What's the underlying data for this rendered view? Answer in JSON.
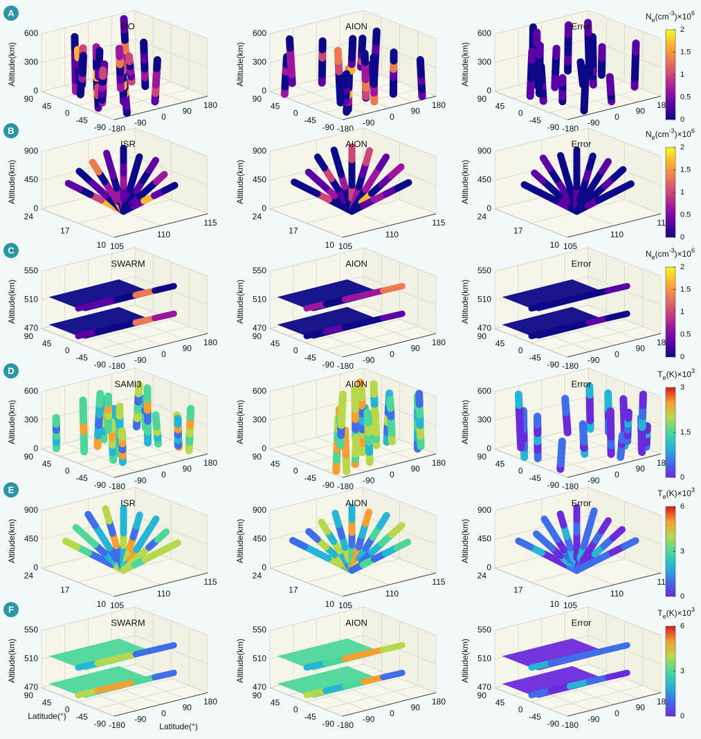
{
  "y_label": "Altitude(km)",
  "panels": [
    {
      "label": "A",
      "titles": [
        "RO",
        "AION",
        "Error"
      ],
      "alt_ticks": [
        0,
        300,
        600
      ],
      "lat_ticks": [
        90,
        45,
        0,
        -45,
        -90
      ],
      "lon_ticks": [
        -180,
        -90,
        0,
        90,
        180
      ],
      "colorbar": {
        "title": [
          "N",
          "e",
          "(cm",
          "-3",
          ")×10",
          "6"
        ],
        "ticks": [
          0,
          0.5,
          1,
          1.5,
          2
        ],
        "colors": [
          "#0d0887",
          "#5c01a6",
          "#9c179e",
          "#cc4778",
          "#ed7953",
          "#fdb42f",
          "#f0f921"
        ]
      }
    },
    {
      "label": "B",
      "titles": [
        "ISR",
        "AION",
        "Error"
      ],
      "alt_ticks": [
        0,
        450,
        900
      ],
      "lat_ticks": [
        24,
        17,
        10
      ],
      "lon_ticks": [
        105,
        110,
        115
      ],
      "colorbar": {
        "title": [
          "N",
          "e",
          "(cm",
          "-3",
          ")×10",
          "6"
        ],
        "ticks": [
          0,
          0.5,
          1,
          1.5,
          2
        ],
        "colors": [
          "#0d0887",
          "#5c01a6",
          "#9c179e",
          "#cc4778",
          "#ed7953",
          "#fdb42f",
          "#f0f921"
        ]
      }
    },
    {
      "label": "C",
      "titles": [
        "SWARM",
        "AION",
        "Error"
      ],
      "alt_ticks": [
        470,
        510,
        550
      ],
      "lat_ticks": [
        90,
        45,
        0,
        -45,
        -90
      ],
      "lon_ticks": [
        -180,
        -90,
        0,
        90,
        180
      ],
      "colorbar": {
        "title": [
          "N",
          "e",
          "(cm",
          "-3",
          ")×10",
          "6"
        ],
        "ticks": [
          0,
          0.5,
          1,
          1.5,
          2
        ],
        "colors": [
          "#0d0887",
          "#5c01a6",
          "#9c179e",
          "#cc4778",
          "#ed7953",
          "#fdb42f",
          "#f0f921"
        ]
      }
    },
    {
      "label": "D",
      "titles": [
        "SAMI3",
        "AION",
        "Error"
      ],
      "alt_ticks": [
        0,
        300,
        600
      ],
      "lat_ticks": [
        90,
        45,
        0,
        -45,
        -90
      ],
      "lon_ticks": [
        -180,
        -90,
        0,
        90,
        180
      ],
      "colorbar": {
        "title": [
          "T",
          "e",
          "(K)×10",
          "3"
        ],
        "ticks": [
          0,
          1.5,
          3
        ],
        "colors": [
          "#6a2bdb",
          "#3f6fe8",
          "#25b6d6",
          "#4dd69a",
          "#b8d84b",
          "#f5a030",
          "#d7191c"
        ]
      }
    },
    {
      "label": "E",
      "titles": [
        "ISR",
        "AION",
        "Error"
      ],
      "alt_ticks": [
        0,
        450,
        900
      ],
      "lat_ticks": [
        24,
        17,
        10
      ],
      "lon_ticks": [
        105,
        110,
        115
      ],
      "colorbar": {
        "title": [
          "T",
          "e",
          "(K)×10",
          "3"
        ],
        "ticks": [
          0,
          3,
          6
        ],
        "colors": [
          "#6a2bdb",
          "#3f6fe8",
          "#25b6d6",
          "#4dd69a",
          "#b8d84b",
          "#f5a030",
          "#d7191c"
        ]
      }
    },
    {
      "label": "F",
      "titles": [
        "SWARM",
        "AION",
        "Error"
      ],
      "alt_ticks": [
        470,
        510,
        550
      ],
      "lat_ticks": [
        90,
        45,
        0,
        -45,
        -90
      ],
      "lon_ticks": [
        -180,
        -90,
        0,
        90,
        180
      ],
      "x_labels": [
        "Latitude(°)",
        "Latitude(°)"
      ],
      "colorbar": {
        "title": [
          "T",
          "e",
          "(K)×10",
          "3"
        ],
        "ticks": [
          0,
          3,
          6
        ],
        "colors": [
          "#6a2bdb",
          "#3f6fe8",
          "#25b6d6",
          "#4dd69a",
          "#b8d84b",
          "#f5a030",
          "#d7191c"
        ]
      }
    }
  ]
}
